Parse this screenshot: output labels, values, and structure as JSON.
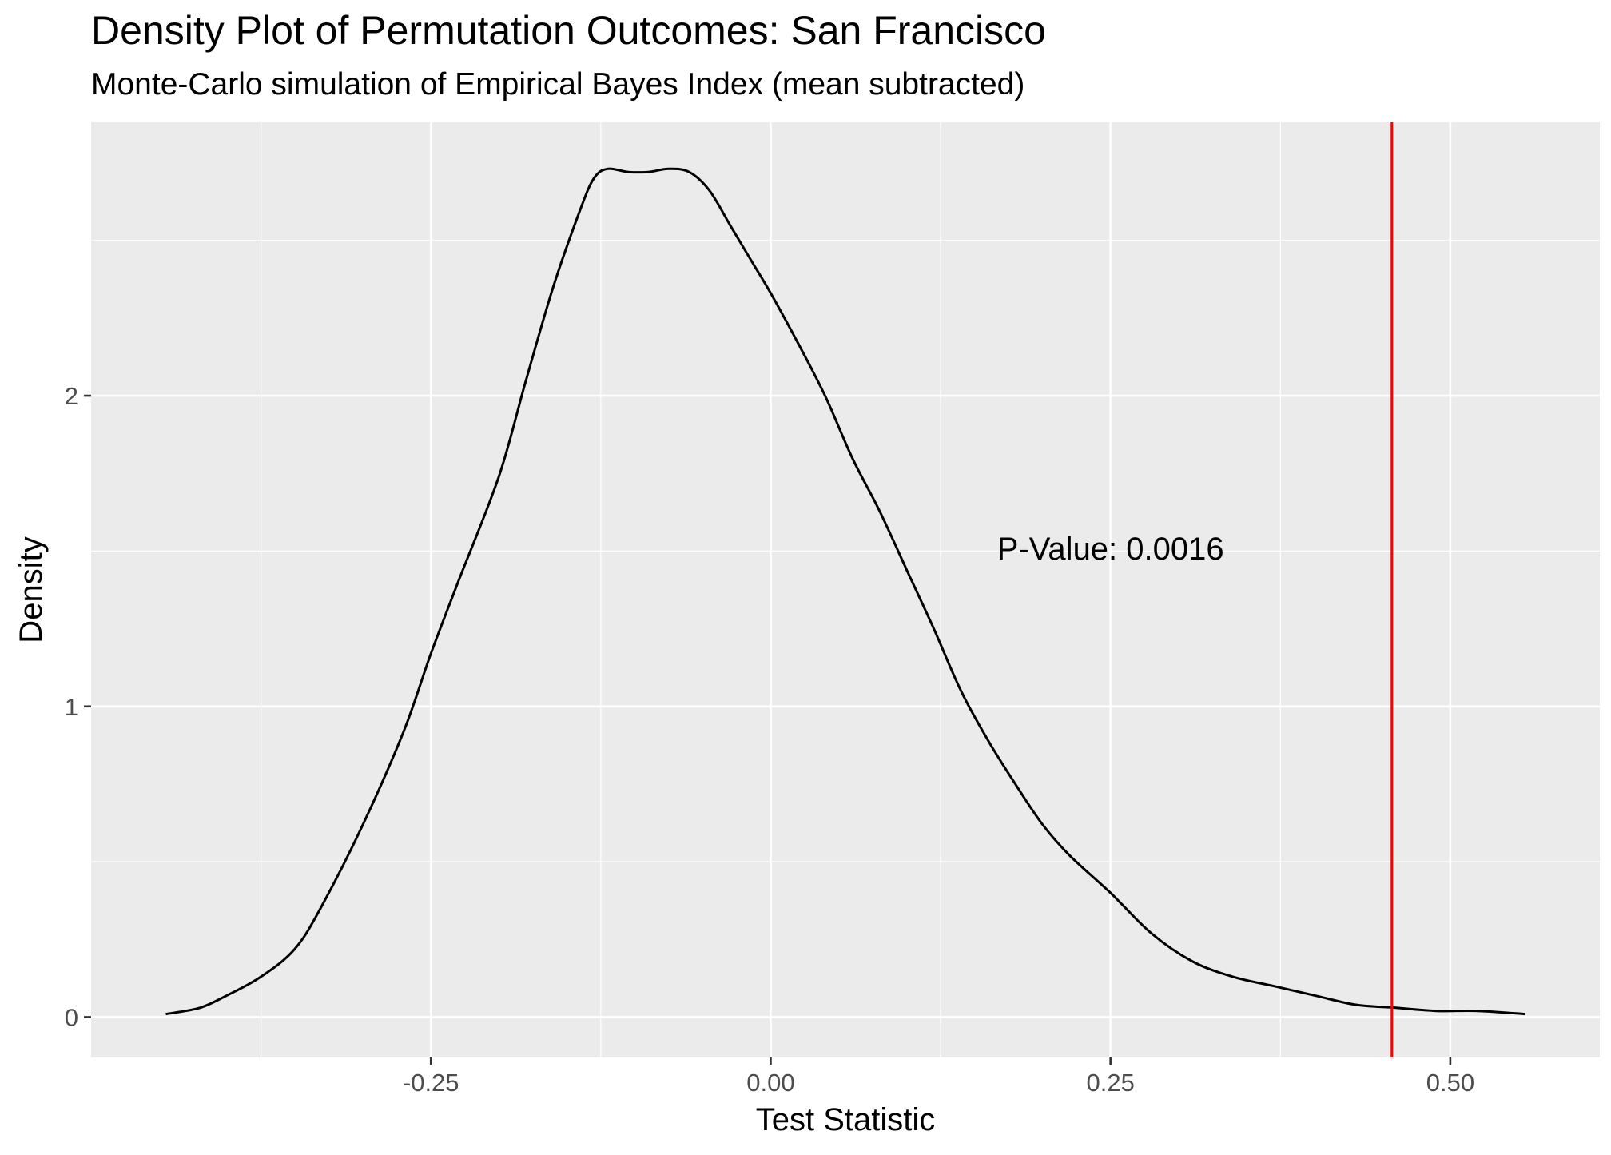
{
  "chart_data": {
    "type": "line",
    "title": "Density Plot of Permutation Outcomes: San Francisco",
    "subtitle": "Monte-Carlo simulation of Empirical Bayes Index (mean subtracted)",
    "xlabel": "Test Statistic",
    "ylabel": "Density",
    "xlim": [
      -0.5,
      0.61
    ],
    "ylim": [
      -0.13,
      2.88
    ],
    "x_ticks": [
      -0.25,
      0.0,
      0.25,
      0.5
    ],
    "x_tick_labels": [
      "-0.25",
      "0.00",
      "0.25",
      "0.50"
    ],
    "y_ticks": [
      0,
      1,
      2
    ],
    "y_tick_labels": [
      "0",
      "1",
      "2"
    ],
    "grid": true,
    "legend": "none",
    "series": [
      {
        "x": [
          -0.445,
          -0.42,
          -0.4,
          -0.375,
          -0.35,
          -0.33,
          -0.3,
          -0.27,
          -0.25,
          -0.23,
          -0.2,
          -0.18,
          -0.16,
          -0.14,
          -0.13,
          -0.12,
          -0.105,
          -0.09,
          -0.075,
          -0.06,
          -0.045,
          -0.03,
          -0.015,
          0.0,
          0.02,
          0.04,
          0.06,
          0.08,
          0.1,
          0.12,
          0.14,
          0.16,
          0.18,
          0.2,
          0.22,
          0.25,
          0.28,
          0.31,
          0.34,
          0.37,
          0.4,
          0.43,
          0.46,
          0.49,
          0.52,
          0.555
        ],
        "y": [
          0.01,
          0.03,
          0.07,
          0.13,
          0.22,
          0.36,
          0.62,
          0.92,
          1.17,
          1.4,
          1.74,
          2.05,
          2.35,
          2.6,
          2.7,
          2.73,
          2.72,
          2.72,
          2.73,
          2.72,
          2.66,
          2.55,
          2.44,
          2.33,
          2.17,
          2.0,
          1.8,
          1.63,
          1.44,
          1.25,
          1.05,
          0.89,
          0.75,
          0.62,
          0.52,
          0.4,
          0.27,
          0.18,
          0.13,
          0.1,
          0.07,
          0.04,
          0.03,
          0.02,
          0.02,
          0.01
        ]
      }
    ],
    "vline": {
      "x": 0.457,
      "color": "#ff0000"
    },
    "annotation": {
      "text": "P-Value: 0.0016",
      "x": 0.25,
      "y": 1.5
    }
  }
}
